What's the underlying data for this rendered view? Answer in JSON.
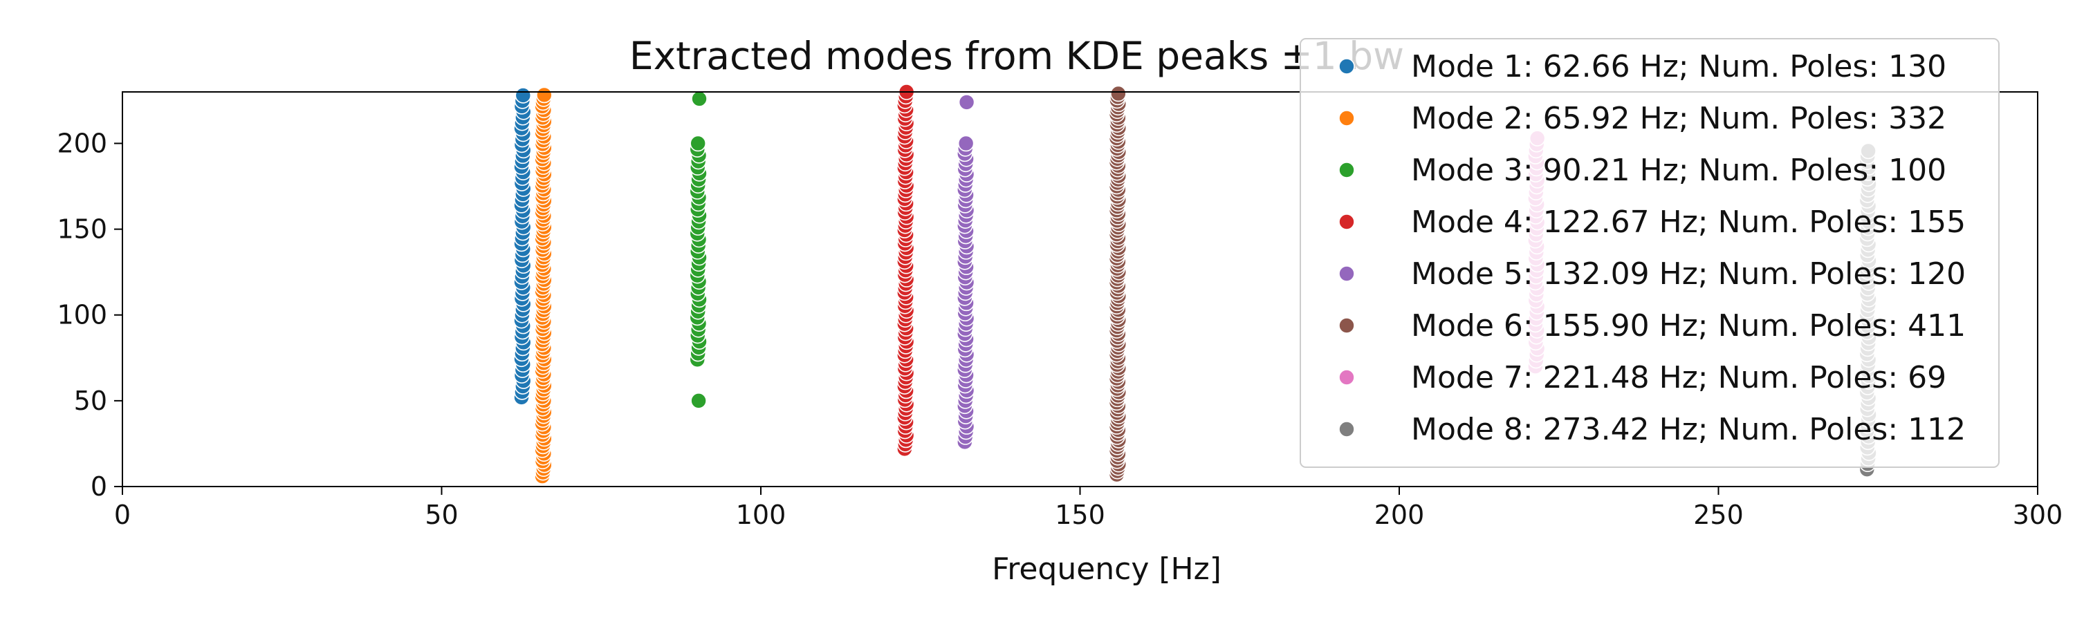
{
  "chart_data": {
    "type": "scatter",
    "title": "Extracted modes from KDE peaks ±1 bw",
    "xlabel": "Frequency [Hz]",
    "ylabel": "",
    "xlim": [
      0,
      300
    ],
    "ylim": [
      0,
      230
    ],
    "xticks": [
      "0",
      "50",
      "100",
      "150",
      "200",
      "250",
      "300"
    ],
    "yticks": [
      "0",
      "50",
      "100",
      "150",
      "200"
    ],
    "grid": false,
    "legend_position": "top-right",
    "series": [
      {
        "name": "Mode 1: 62.66 Hz; Num. Poles: 130",
        "color": "#1f77b4",
        "x": 62.66,
        "y_min": 52,
        "y_max": 230,
        "step": 3.2,
        "extra": []
      },
      {
        "name": "Mode 2: 65.92 Hz; Num. Poles: 332",
        "color": "#ff7f0e",
        "x": 65.92,
        "y_min": 6,
        "y_max": 230,
        "step": 2.2,
        "extra": []
      },
      {
        "name": "Mode 3: 90.21 Hz; Num. Poles: 100",
        "color": "#2ca02c",
        "x": 90.21,
        "y_min": 74,
        "y_max": 203,
        "step": 3.5,
        "extra": [
          50,
          226
        ]
      },
      {
        "name": "Mode 4: 122.67 Hz; Num. Poles: 155",
        "color": "#d62728",
        "x": 122.67,
        "y_min": 22,
        "y_max": 230,
        "step": 2.6,
        "extra": []
      },
      {
        "name": "Mode 5: 132.09 Hz; Num. Poles: 120",
        "color": "#9467bd",
        "x": 132.09,
        "y_min": 26,
        "y_max": 200,
        "step": 3.0,
        "extra": [
          224
        ]
      },
      {
        "name": "Mode 6: 155.90 Hz; Num. Poles: 411",
        "color": "#8c564b",
        "x": 155.9,
        "y_min": 7,
        "y_max": 230,
        "step": 2.0,
        "extra": []
      },
      {
        "name": "Mode 7: 221.48 Hz; Num. Poles: 69",
        "color": "#e377c2",
        "x": 221.48,
        "y_min": 70,
        "y_max": 205,
        "step": 3.5,
        "extra": []
      },
      {
        "name": "Mode 8: 273.42 Hz; Num. Poles: 112",
        "color": "#7f7f7f",
        "x": 273.42,
        "y_min": 10,
        "y_max": 197,
        "step": 3.2,
        "extra": []
      }
    ]
  }
}
